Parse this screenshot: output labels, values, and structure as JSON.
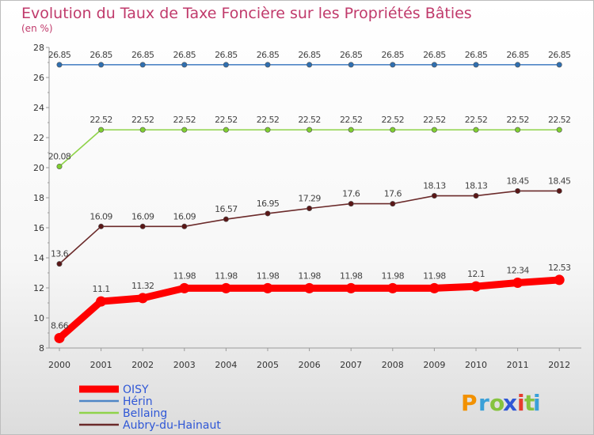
{
  "chart_data": {
    "type": "line",
    "title": "Evolution du Taux de Taxe Foncière sur les Propriétés Bâties",
    "ylabel": "(en %)",
    "xlabel": "",
    "categories": [
      "2000",
      "2001",
      "2002",
      "2003",
      "2004",
      "2005",
      "2006",
      "2007",
      "2008",
      "2009",
      "2010",
      "2011",
      "2012"
    ],
    "ylim": [
      8,
      28
    ],
    "yticks": [
      8,
      10,
      12,
      14,
      16,
      18,
      20,
      22,
      24,
      26,
      28
    ],
    "series": [
      {
        "name": "OISY",
        "color": "#ff0000",
        "labels": [
          "8.66",
          "11.1",
          "11.32",
          "11.98",
          "11.98",
          "11.98",
          "11.98",
          "11.98",
          "11.98",
          "11.98",
          "12.1",
          "12.34",
          "12.53"
        ],
        "values": [
          8.66,
          11.1,
          11.32,
          11.98,
          11.98,
          11.98,
          11.98,
          11.98,
          11.98,
          11.98,
          12.1,
          12.34,
          12.53
        ]
      },
      {
        "name": "Hérin",
        "color": "#4f86c6",
        "labels": [
          "26.85",
          "26.85",
          "26.85",
          "26.85",
          "26.85",
          "26.85",
          "26.85",
          "26.85",
          "26.85",
          "26.85",
          "26.85",
          "26.85",
          "26.85"
        ],
        "values": [
          26.85,
          26.85,
          26.85,
          26.85,
          26.85,
          26.85,
          26.85,
          26.85,
          26.85,
          26.85,
          26.85,
          26.85,
          26.85
        ]
      },
      {
        "name": "Bellaing",
        "color": "#8fd34a",
        "labels": [
          "20.08",
          "22.52",
          "22.52",
          "22.52",
          "22.52",
          "22.52",
          "22.52",
          "22.52",
          "22.52",
          "22.52",
          "22.52",
          "22.52",
          "22.52"
        ],
        "values": [
          20.08,
          22.52,
          22.52,
          22.52,
          22.52,
          22.52,
          22.52,
          22.52,
          22.52,
          22.52,
          22.52,
          22.52,
          22.52
        ]
      },
      {
        "name": "Aubry-du-Hainaut",
        "color": "#6b2a2a",
        "labels": [
          "13.6",
          "16.09",
          "16.09",
          "16.09",
          "16.57",
          "16.95",
          "17.29",
          "17.6",
          "17.6",
          "18.13",
          "18.13",
          "18.45",
          "18.45"
        ],
        "values": [
          13.6,
          16.09,
          16.09,
          16.09,
          16.57,
          16.95,
          17.29,
          17.6,
          17.6,
          18.13,
          18.13,
          18.45,
          18.45
        ]
      }
    ],
    "legend_position": "bottom-left",
    "grid": false
  },
  "brand": {
    "text": "Proxiti",
    "letters": [
      "P",
      "r",
      "o",
      "x",
      "i",
      "t",
      "i"
    ],
    "colors": [
      "#f29100",
      "#3aa0d8",
      "#86c33f",
      "#2f57d6",
      "#e63b2e",
      "#86c33f",
      "#3aa0d8"
    ]
  }
}
